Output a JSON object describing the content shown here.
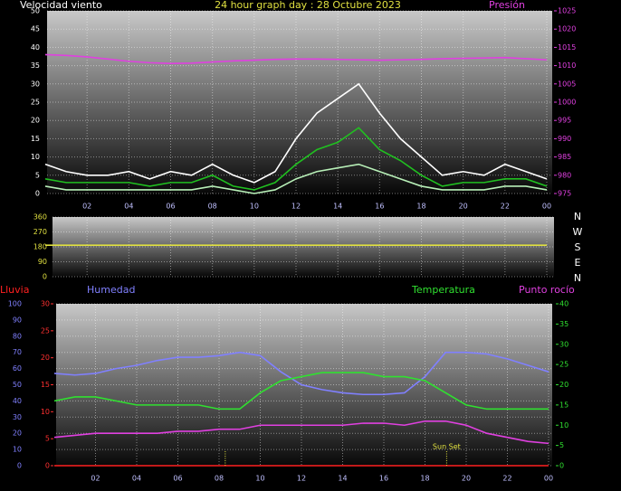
{
  "charts": [
    {
      "type": "line",
      "title": "24 hour graph day : 28 Octubre 2023",
      "ylabel": "Velocidad viento",
      "y2label": "Presión",
      "x": [
        0,
        1,
        2,
        3,
        4,
        5,
        6,
        7,
        8,
        9,
        10,
        11,
        12,
        13,
        14,
        15,
        16,
        17,
        18,
        19,
        20,
        21,
        22,
        23,
        24
      ],
      "xlim": [
        0,
        24
      ],
      "xticks": [
        {
          "value": 2,
          "label": "02"
        },
        {
          "value": 4,
          "label": "04"
        },
        {
          "value": 6,
          "label": "06"
        },
        {
          "value": 8,
          "label": "08"
        },
        10,
        12,
        14,
        16,
        18,
        20,
        22,
        {
          "value": 24,
          "label": "00"
        }
      ],
      "ylim": [
        0,
        50
      ],
      "yticks": [
        0,
        5,
        10,
        15,
        20,
        25,
        30,
        35,
        40,
        45,
        50
      ],
      "ycolor": "#ffffff",
      "y2lim": [
        975,
        1025
      ],
      "y2ticks": [
        975,
        980,
        985,
        990,
        995,
        1000,
        1005,
        1010,
        1015,
        1020,
        1025
      ],
      "y2color": "#e040e0",
      "grid": true,
      "series": [
        {
          "color": "#ffffff",
          "values": [
            8,
            6,
            5,
            5,
            6,
            4,
            6,
            5,
            8,
            5,
            3,
            6,
            15,
            22,
            26,
            30,
            22,
            15,
            10,
            5,
            6,
            5,
            8,
            6,
            4
          ]
        },
        {
          "color": "#b8f0b8",
          "values": [
            2,
            1,
            1,
            1,
            1,
            1,
            1,
            1,
            2,
            1,
            0,
            1,
            4,
            6,
            7,
            8,
            6,
            4,
            2,
            1,
            1,
            1,
            2,
            2,
            1
          ]
        },
        {
          "color": "#20c020",
          "values": [
            4,
            3,
            3,
            3,
            3,
            2,
            3,
            3,
            5,
            2,
            1,
            3,
            8,
            12,
            14,
            18,
            12,
            9,
            5,
            2,
            3,
            3,
            4,
            4,
            2
          ]
        },
        {
          "color": "#e040e0",
          "axis": "y2",
          "values": [
            1013,
            1012.8,
            1012.4,
            1011.8,
            1011.2,
            1010.8,
            1010.6,
            1010.7,
            1011,
            1011.3,
            1011.5,
            1011.7,
            1011.8,
            1011.8,
            1011.7,
            1011.6,
            1011.5,
            1011.6,
            1011.7,
            1011.9,
            1012,
            1012.1,
            1012.2,
            1011.9,
            1011.6
          ]
        }
      ]
    },
    {
      "type": "line",
      "x": [
        0,
        24
      ],
      "xlim": [
        0,
        24
      ],
      "ylim": [
        0,
        360
      ],
      "yticks": [
        0,
        90,
        180,
        270,
        360
      ],
      "ycolor": "#e0e040",
      "grid": true,
      "xticks": [
        {
          "value": 2,
          "label": "02"
        },
        {
          "value": 4,
          "label": "04"
        },
        {
          "value": 6,
          "label": "06"
        },
        {
          "value": 8,
          "label": "08"
        },
        10,
        12,
        14,
        16,
        18,
        20,
        22,
        {
          "value": 24,
          "label": "00"
        }
      ],
      "side_labels": [
        "N",
        "W",
        "S",
        "E",
        "N"
      ],
      "series": [
        {
          "color": "#e0e040",
          "values": [
            190,
            190
          ]
        }
      ]
    },
    {
      "type": "line",
      "x": [
        0,
        1,
        2,
        3,
        4,
        5,
        6,
        7,
        8,
        9,
        10,
        11,
        12,
        13,
        14,
        15,
        16,
        17,
        18,
        19,
        20,
        21,
        22,
        23,
        24
      ],
      "xlim": [
        0,
        24
      ],
      "xticks": [
        {
          "value": 2,
          "label": "02"
        },
        {
          "value": 4,
          "label": "04"
        },
        {
          "value": 6,
          "label": "06"
        },
        {
          "value": 8,
          "label": "08"
        },
        10,
        12,
        14,
        16,
        18,
        20,
        22,
        {
          "value": 24,
          "label": "00"
        }
      ],
      "ylim": [
        0,
        100
      ],
      "yticks": [
        0,
        10,
        20,
        30,
        40,
        50,
        60,
        70,
        80,
        90,
        100
      ],
      "ycolor": "#8080ff",
      "y2lim": [
        0,
        40
      ],
      "y2ticks": [
        0,
        5,
        10,
        15,
        20,
        25,
        30,
        35,
        40
      ],
      "y2color": "#30e030",
      "y3lim": [
        0,
        30
      ],
      "y3ticks": [
        0,
        5,
        10,
        15,
        20,
        25,
        30
      ],
      "y3color": "#ff3030",
      "grid": true,
      "series": [
        {
          "name": "Lluvia",
          "color": "#ff2020",
          "axis": "y3",
          "values": [
            0,
            0,
            0,
            0,
            0,
            0,
            0,
            0,
            0,
            0,
            0,
            0,
            0,
            0,
            0,
            0,
            0,
            0,
            0,
            0,
            0,
            0,
            0,
            0,
            0
          ]
        },
        {
          "name": "Humedad",
          "color": "#8080ff",
          "values": [
            57,
            56,
            57,
            60,
            62,
            65,
            67,
            67,
            68,
            70,
            68,
            58,
            50,
            47,
            45,
            44,
            44,
            45,
            55,
            70,
            70,
            69,
            66,
            62,
            58
          ]
        },
        {
          "name": "Temperatura",
          "color": "#30e030",
          "axis": "y2",
          "values": [
            16,
            17,
            17,
            16,
            15,
            15,
            15,
            15,
            14,
            14,
            18,
            21,
            22,
            23,
            23,
            23,
            22,
            22,
            21,
            18,
            15,
            14,
            14,
            14,
            14
          ]
        },
        {
          "name": "Punto rocío",
          "color": "#e040e0",
          "axis": "y2",
          "values": [
            7,
            7.5,
            8,
            8,
            8,
            8,
            8.5,
            8.5,
            9,
            9,
            10,
            10,
            10,
            10,
            10,
            10.5,
            10.5,
            10,
            11,
            11,
            10,
            8,
            7,
            6,
            5.5
          ]
        }
      ],
      "annotations": [
        {
          "x": 8.3
        },
        {
          "x": 19.05,
          "text": "Sun Set"
        }
      ]
    }
  ]
}
